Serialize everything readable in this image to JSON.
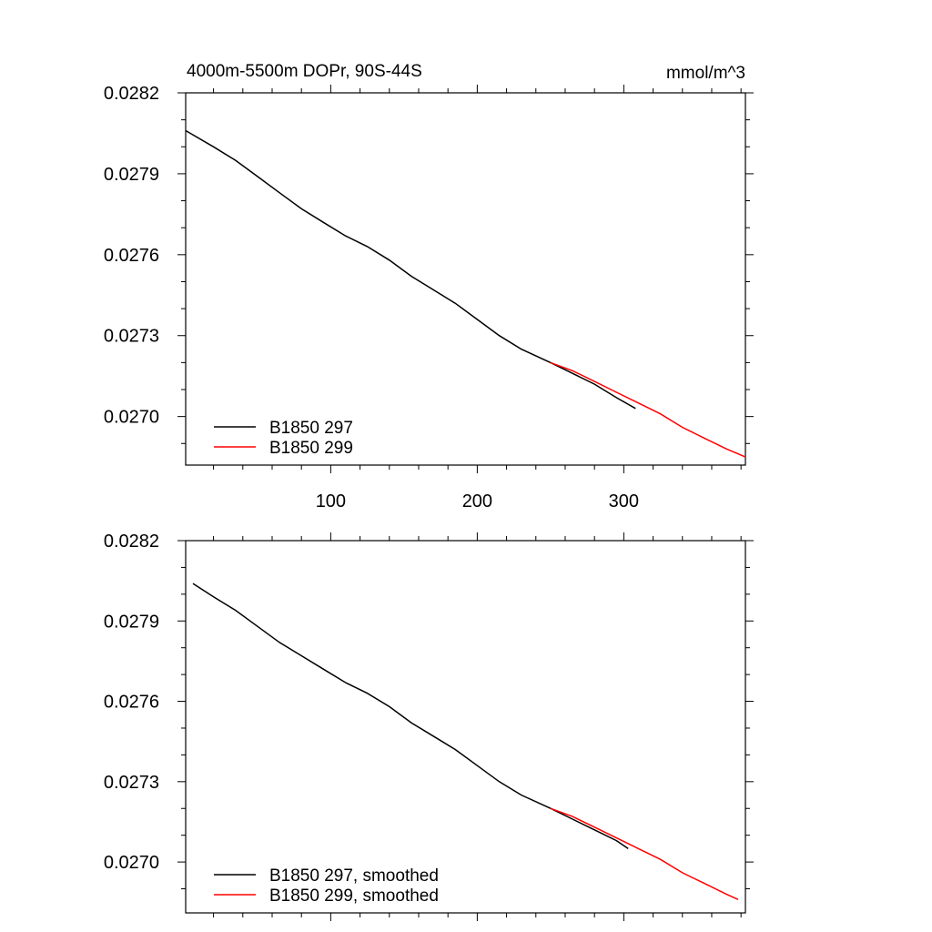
{
  "chart_data": [
    {
      "type": "line",
      "title_left": "4000m-5500m DOPr, 90S-44S",
      "title_right": "mmol/m^3",
      "xlabel": "",
      "ylabel": "",
      "xlim": [
        1,
        383
      ],
      "ylim": [
        0.02682,
        0.0282
      ],
      "x_ticks": [
        100,
        200,
        300
      ],
      "x_tick_labels": [
        "100",
        "200",
        "300"
      ],
      "y_ticks": [
        0.027,
        0.0273,
        0.0276,
        0.0279,
        0.0282
      ],
      "y_tick_labels": [
        "0.0270",
        "0.0273",
        "0.0276",
        "0.0279",
        "0.0282"
      ],
      "legend_position": "bottom-left",
      "series": [
        {
          "name": "B1850 297",
          "color": "#000000",
          "x": [
            1,
            20,
            35,
            50,
            65,
            80,
            95,
            110,
            125,
            140,
            155,
            170,
            185,
            200,
            215,
            230,
            250,
            265,
            280,
            295,
            308
          ],
          "y": [
            0.02806,
            0.028,
            0.02795,
            0.02789,
            0.02783,
            0.02777,
            0.02772,
            0.02767,
            0.02763,
            0.02758,
            0.02752,
            0.02747,
            0.02742,
            0.02736,
            0.0273,
            0.02725,
            0.0272,
            0.02716,
            0.02712,
            0.02707,
            0.02703
          ]
        },
        {
          "name": "B1850 299",
          "color": "#ff0000",
          "x": [
            250,
            265,
            280,
            295,
            310,
            325,
            340,
            355,
            370,
            383
          ],
          "y": [
            0.0272,
            0.02717,
            0.02713,
            0.02709,
            0.02705,
            0.02701,
            0.02696,
            0.02692,
            0.02688,
            0.02685
          ]
        }
      ]
    },
    {
      "type": "line",
      "xlabel": "",
      "ylabel": "",
      "xlim": [
        1,
        383
      ],
      "ylim": [
        0.02681,
        0.0282
      ],
      "x_ticks": [
        100,
        200,
        300
      ],
      "y_ticks": [
        0.027,
        0.0273,
        0.0276,
        0.0279,
        0.0282
      ],
      "y_tick_labels": [
        "0.0270",
        "0.0273",
        "0.0276",
        "0.0279",
        "0.0282"
      ],
      "legend_position": "bottom-left",
      "series": [
        {
          "name": "B1850 297, smoothed",
          "color": "#000000",
          "x": [
            6,
            20,
            35,
            50,
            65,
            80,
            95,
            110,
            125,
            140,
            155,
            170,
            185,
            200,
            215,
            230,
            250,
            265,
            280,
            295,
            303
          ],
          "y": [
            0.02804,
            0.02799,
            0.02794,
            0.02788,
            0.02782,
            0.02777,
            0.02772,
            0.02767,
            0.02763,
            0.02758,
            0.02752,
            0.02747,
            0.02742,
            0.02736,
            0.0273,
            0.02725,
            0.0272,
            0.02716,
            0.02712,
            0.02708,
            0.02705
          ]
        },
        {
          "name": "B1850 299, smoothed",
          "color": "#ff0000",
          "x": [
            250,
            265,
            280,
            295,
            310,
            325,
            340,
            355,
            370,
            378
          ],
          "y": [
            0.0272,
            0.02717,
            0.02713,
            0.02709,
            0.02705,
            0.02701,
            0.02696,
            0.02692,
            0.02688,
            0.02686
          ]
        }
      ]
    }
  ]
}
